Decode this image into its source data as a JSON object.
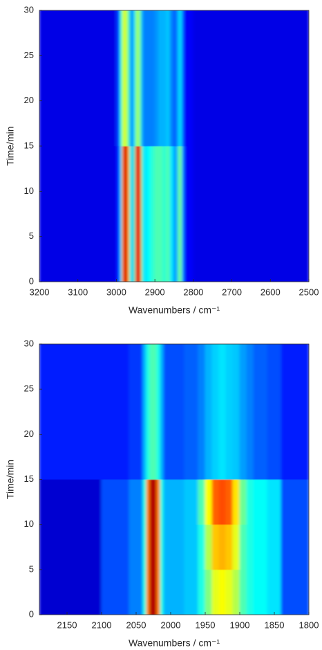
{
  "chart_data": [
    {
      "type": "heatmap",
      "xlabel": "Wavenumbers / cm⁻¹",
      "ylabel": "Time/min",
      "xlim": [
        3200,
        2500
      ],
      "ylim": [
        0,
        30
      ],
      "xticks": [
        3200,
        3100,
        3000,
        2900,
        2800,
        2700,
        2600,
        2500
      ],
      "yticks": [
        0,
        5,
        10,
        15,
        20,
        25,
        30
      ],
      "xbins": [
        3200,
        3000,
        2990,
        2985,
        2980,
        2975,
        2970,
        2965,
        2960,
        2955,
        2950,
        2945,
        2940,
        2935,
        2930,
        2925,
        2920,
        2910,
        2900,
        2890,
        2880,
        2870,
        2860,
        2850,
        2845,
        2840,
        2835,
        2830,
        2825,
        2820,
        2800,
        2500
      ],
      "ybins": [
        0,
        15,
        30
      ],
      "z": [
        [
          0.1,
          0.15,
          0.35,
          0.75,
          0.92,
          0.9,
          0.7,
          0.4,
          0.3,
          0.45,
          0.85,
          0.92,
          0.8,
          0.45,
          0.35,
          0.35,
          0.38,
          0.42,
          0.45,
          0.45,
          0.42,
          0.45,
          0.35,
          0.25,
          0.3,
          0.45,
          0.5,
          0.3,
          0.18,
          0.12,
          0.1
        ],
        [
          0.1,
          0.18,
          0.4,
          0.55,
          0.6,
          0.55,
          0.45,
          0.3,
          0.25,
          0.35,
          0.5,
          0.55,
          0.45,
          0.3,
          0.25,
          0.25,
          0.25,
          0.25,
          0.27,
          0.3,
          0.3,
          0.32,
          0.25,
          0.2,
          0.25,
          0.32,
          0.35,
          0.25,
          0.15,
          0.12,
          0.1
        ]
      ],
      "colormap": "jet"
    },
    {
      "type": "heatmap",
      "xlabel": "Wavenumbers / cm⁻¹",
      "ylabel": "Time/min",
      "xlim": [
        2190,
        1800
      ],
      "ylim": [
        0,
        30
      ],
      "xticks": [
        2150,
        2100,
        2050,
        2000,
        1950,
        1900,
        1850,
        1800
      ],
      "yticks": [
        0,
        5,
        10,
        15,
        20,
        25,
        30
      ],
      "xbins": [
        2190,
        2100,
        2060,
        2040,
        2035,
        2030,
        2025,
        2020,
        2015,
        2010,
        2000,
        1980,
        1960,
        1950,
        1940,
        1930,
        1920,
        1910,
        1900,
        1890,
        1880,
        1860,
        1840,
        1800
      ],
      "ybins": [
        0,
        5,
        10,
        15,
        30
      ],
      "z": [
        [
          0.08,
          0.2,
          0.25,
          0.4,
          0.75,
          0.95,
          0.95,
          0.75,
          0.4,
          0.3,
          0.3,
          0.32,
          0.4,
          0.5,
          0.6,
          0.62,
          0.6,
          0.55,
          0.45,
          0.4,
          0.38,
          0.35,
          0.2
        ],
        [
          0.08,
          0.2,
          0.25,
          0.4,
          0.75,
          0.95,
          0.95,
          0.75,
          0.4,
          0.3,
          0.3,
          0.32,
          0.4,
          0.55,
          0.68,
          0.7,
          0.68,
          0.6,
          0.45,
          0.4,
          0.38,
          0.35,
          0.2
        ],
        [
          0.08,
          0.2,
          0.25,
          0.4,
          0.75,
          0.95,
          0.95,
          0.75,
          0.4,
          0.3,
          0.3,
          0.32,
          0.45,
          0.62,
          0.78,
          0.8,
          0.78,
          0.65,
          0.48,
          0.4,
          0.38,
          0.35,
          0.2
        ],
        [
          0.15,
          0.15,
          0.18,
          0.3,
          0.4,
          0.45,
          0.45,
          0.4,
          0.3,
          0.2,
          0.2,
          0.22,
          0.25,
          0.3,
          0.33,
          0.35,
          0.33,
          0.32,
          0.28,
          0.25,
          0.22,
          0.2,
          0.15
        ]
      ],
      "colormap": "jet"
    }
  ]
}
